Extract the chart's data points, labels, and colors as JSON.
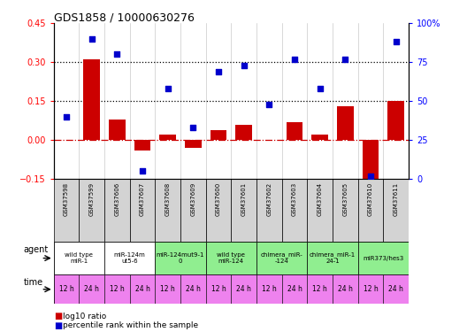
{
  "title": "GDS1858 / 10000630276",
  "samples": [
    "GSM37598",
    "GSM37599",
    "GSM37606",
    "GSM37607",
    "GSM37608",
    "GSM37609",
    "GSM37600",
    "GSM37601",
    "GSM37602",
    "GSM37603",
    "GSM37604",
    "GSM37605",
    "GSM37610",
    "GSM37611"
  ],
  "log10_ratio": [
    0.0,
    0.31,
    0.08,
    -0.04,
    0.02,
    -0.03,
    0.04,
    0.06,
    0.0,
    0.07,
    0.02,
    0.13,
    -0.19,
    0.15
  ],
  "pct_rank": [
    40,
    90,
    80,
    5,
    58,
    33,
    69,
    73,
    48,
    77,
    58,
    77,
    2,
    88
  ],
  "ylim_left": [
    -0.15,
    0.45
  ],
  "ylim_right": [
    0,
    100
  ],
  "yticks_left": [
    -0.15,
    0.0,
    0.15,
    0.3,
    0.45
  ],
  "yticks_right": [
    0,
    25,
    50,
    75,
    100
  ],
  "hline_values": [
    0.15,
    0.3
  ],
  "agent_groups": [
    {
      "label": "wild type\nmiR-1",
      "start": 0,
      "end": 2,
      "color": "#ffffff"
    },
    {
      "label": "miR-124m\nut5-6",
      "start": 2,
      "end": 4,
      "color": "#ffffff"
    },
    {
      "label": "miR-124mut9-1\n0",
      "start": 4,
      "end": 6,
      "color": "#90ee90"
    },
    {
      "label": "wild type\nmiR-124",
      "start": 6,
      "end": 8,
      "color": "#90ee90"
    },
    {
      "label": "chimera_miR-\n-124",
      "start": 8,
      "end": 10,
      "color": "#90ee90"
    },
    {
      "label": "chimera_miR-1\n24-1",
      "start": 10,
      "end": 12,
      "color": "#90ee90"
    },
    {
      "label": "miR373/hes3",
      "start": 12,
      "end": 14,
      "color": "#90ee90"
    }
  ],
  "time_labels": [
    "12 h",
    "24 h",
    "12 h",
    "24 h",
    "12 h",
    "24 h",
    "12 h",
    "24 h",
    "12 h",
    "24 h",
    "12 h",
    "24 h",
    "12 h",
    "24 h"
  ],
  "time_bg": [
    "#ee82ee",
    "#ee82ee",
    "#ee82ee",
    "#ee82ee",
    "#ee82ee",
    "#ee82ee",
    "#ee82ee",
    "#ee82ee",
    "#ee82ee",
    "#ee82ee",
    "#ee82ee",
    "#ee82ee",
    "#ee82ee",
    "#ee82ee"
  ],
  "bar_color": "#cc0000",
  "scatter_color": "#0000cc",
  "zero_line_color": "#cc0000",
  "dotted_line_color": "#000000",
  "sample_bg_color": "#d3d3d3",
  "fig_width": 5.28,
  "fig_height": 3.75,
  "dpi": 100
}
